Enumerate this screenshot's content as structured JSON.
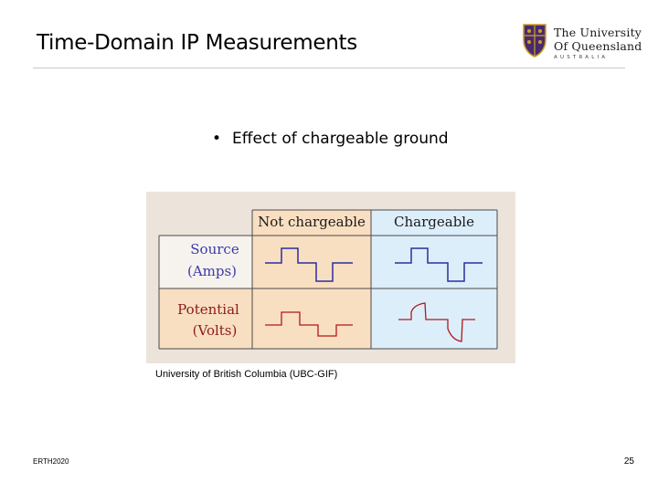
{
  "slide": {
    "title": "Time-Domain IP Measurements",
    "bullet": "Effect of chargeable ground",
    "caption": "University of British Columbia (UBC-GIF)",
    "footer_left": "ERTH2020",
    "page_number": "25"
  },
  "logo": {
    "line1": "The University",
    "line2": "Of Queensland",
    "line3": "AUSTRALIA"
  },
  "figure": {
    "headers": [
      "Not chargeable",
      "Chargeable"
    ],
    "rows": [
      {
        "label_line1": "Source",
        "label_line2": "(Amps)"
      },
      {
        "label_line1": "Potential",
        "label_line2": "(Volts)"
      }
    ],
    "colors": {
      "not_chargeable_bg": "#f9dfc2",
      "chargeable_bg": "#ddeefb",
      "header_text": "#1a1a1a",
      "source_label": "#3b3aa8",
      "potential_label": "#8b1a1a",
      "source_wave": "#2b2f9e",
      "potential_wave": "#b01818"
    }
  }
}
